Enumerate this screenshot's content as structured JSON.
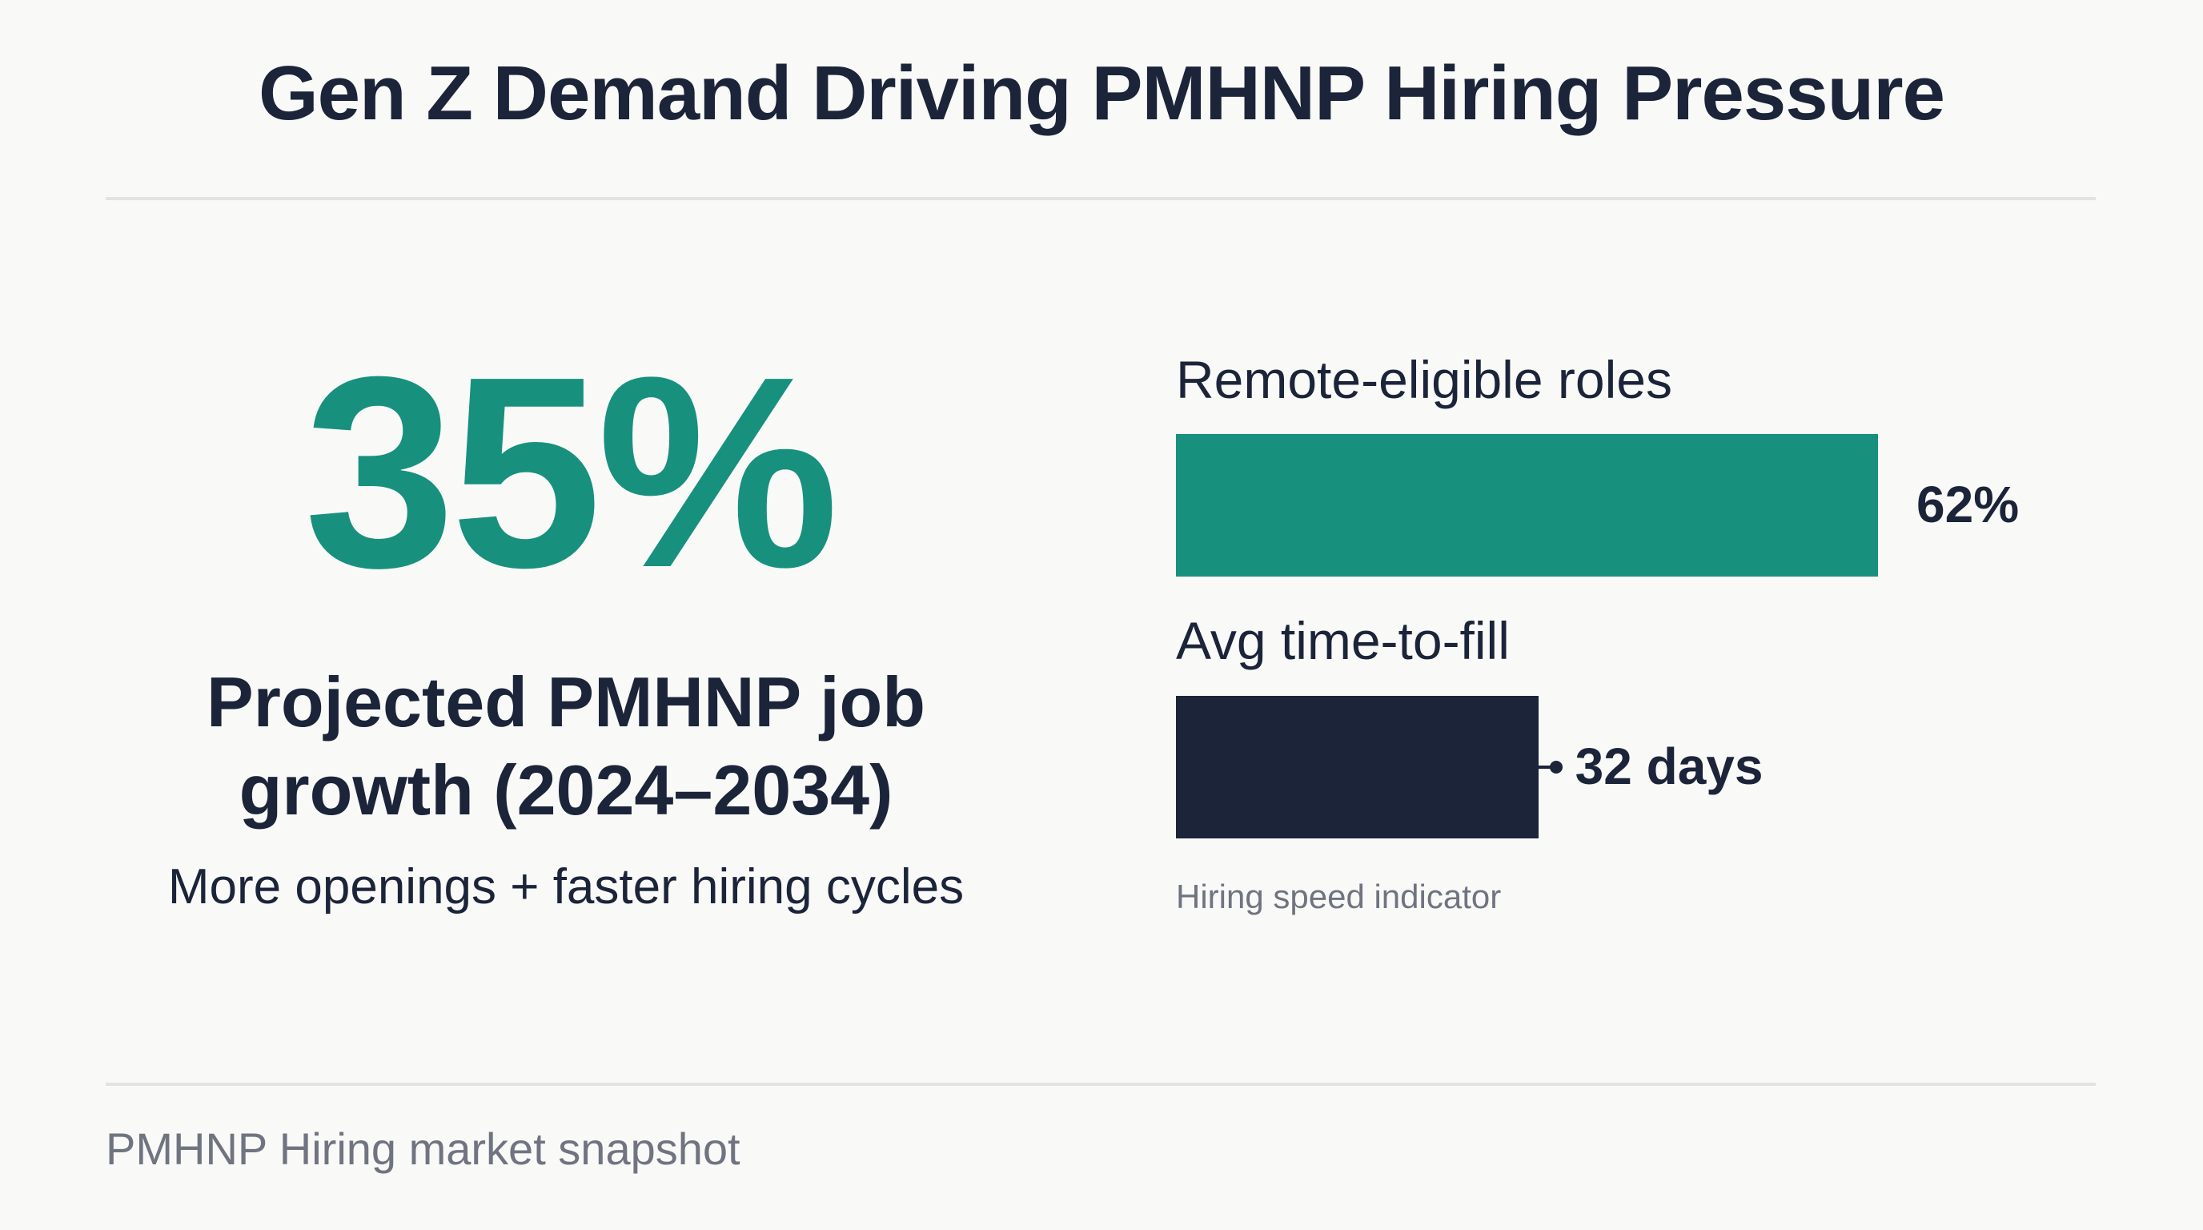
{
  "header": {
    "title": "Gen Z Demand Driving PMHNP Hiring Pressure"
  },
  "hero": {
    "value": 35,
    "value_label": "35%",
    "color": "#17917e",
    "label": "Projected PMHNP job growth (2024–2034)",
    "sublabel": "More openings + faster hiring cycles"
  },
  "bars": [
    {
      "name": "Remote-eligible roles",
      "value": 62,
      "value_label": "62%",
      "color": "#17917e"
    },
    {
      "name": "Avg time-to-fill",
      "value": 32,
      "value_label": "32 days",
      "color": "#1b2439"
    }
  ],
  "bars_note": "Hiring speed indicator",
  "footer": {
    "text": "PMHNP Hiring market snapshot"
  }
}
